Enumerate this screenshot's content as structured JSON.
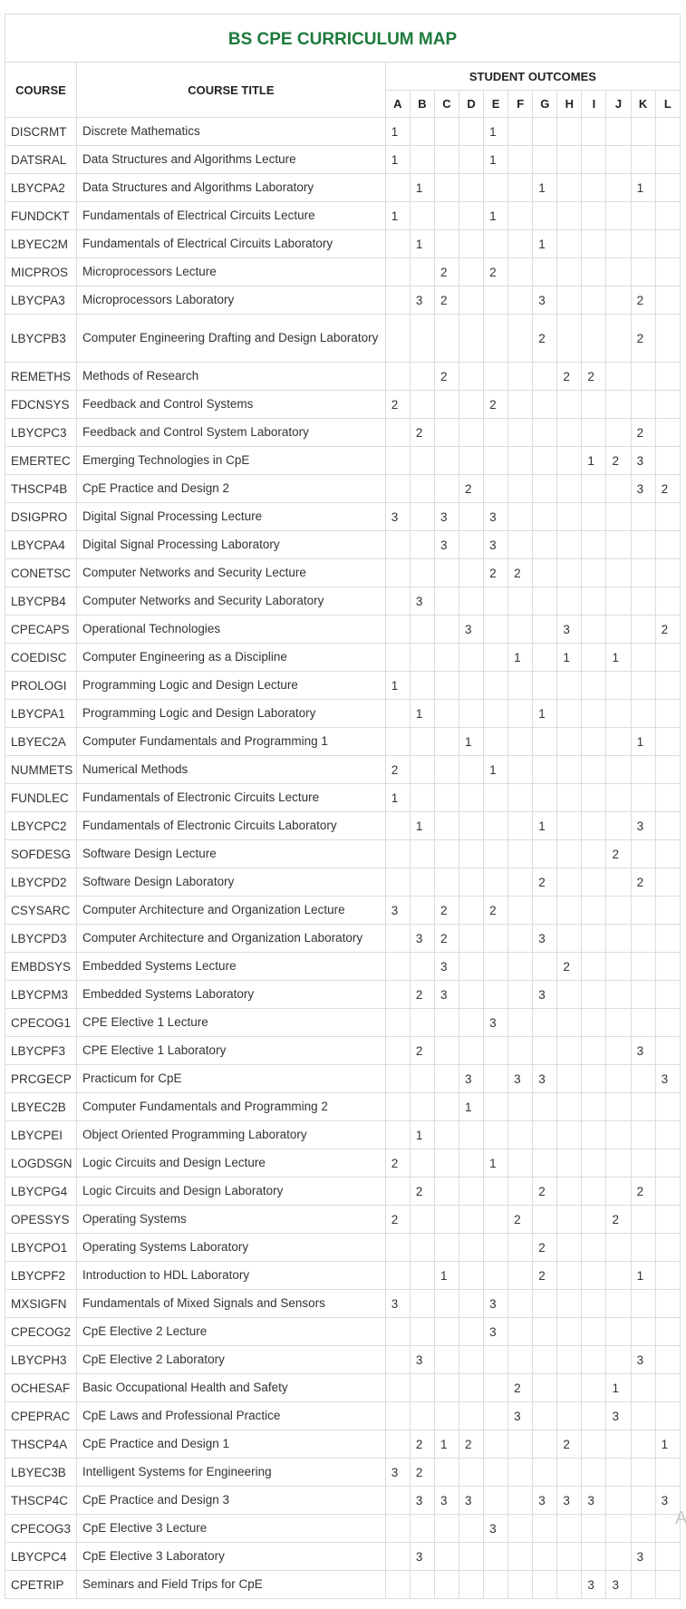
{
  "title": "BS CPE CURRICULUM MAP",
  "headers": {
    "course": "COURSE",
    "course_title": "COURSE TITLE",
    "student_outcomes": "STUDENT OUTCOMES"
  },
  "outcomes": [
    "A",
    "B",
    "C",
    "D",
    "E",
    "F",
    "G",
    "H",
    "I",
    "J",
    "K",
    "L"
  ],
  "rows": [
    {
      "code": "DISCRMT",
      "title": "Discrete Mathematics",
      "so": [
        "1",
        "",
        "",
        "",
        "1",
        "",
        "",
        "",
        "",
        "",
        "",
        ""
      ]
    },
    {
      "code": "DATSRAL",
      "title": "Data Structures and Algorithms Lecture",
      "so": [
        "1",
        "",
        "",
        "",
        "1",
        "",
        "",
        "",
        "",
        "",
        "",
        ""
      ]
    },
    {
      "code": "LBYCPA2",
      "title": "Data Structures and Algorithms Laboratory",
      "so": [
        "",
        "1",
        "",
        "",
        "",
        "",
        "1",
        "",
        "",
        "",
        "1",
        ""
      ]
    },
    {
      "code": "FUNDCKT",
      "title": "Fundamentals of Electrical Circuits Lecture",
      "so": [
        "1",
        "",
        "",
        "",
        "1",
        "",
        "",
        "",
        "",
        "",
        "",
        ""
      ]
    },
    {
      "code": "LBYEC2M",
      "title": "Fundamentals of Electrical Circuits Laboratory",
      "so": [
        "",
        "1",
        "",
        "",
        "",
        "",
        "1",
        "",
        "",
        "",
        "",
        ""
      ]
    },
    {
      "code": "MICPROS",
      "title": "Microprocessors Lecture",
      "so": [
        "",
        "",
        "2",
        "",
        "2",
        "",
        "",
        "",
        "",
        "",
        "",
        ""
      ]
    },
    {
      "code": "LBYCPA3",
      "title": "Microprocessors Laboratory",
      "so": [
        "",
        "3",
        "2",
        "",
        "",
        "",
        "3",
        "",
        "",
        "",
        "2",
        ""
      ]
    },
    {
      "code": "LBYCPB3",
      "title": "Computer Engineering Drafting and Design Laboratory",
      "so": [
        "",
        "",
        "",
        "",
        "",
        "",
        "2",
        "",
        "",
        "",
        "2",
        ""
      ],
      "tall": true
    },
    {
      "code": "REMETHS",
      "title": "Methods of Research",
      "so": [
        "",
        "",
        "2",
        "",
        "",
        "",
        "",
        "2",
        "2",
        "",
        "",
        ""
      ]
    },
    {
      "code": "FDCNSYS",
      "title": "Feedback and Control Systems",
      "so": [
        "2",
        "",
        "",
        "",
        "2",
        "",
        "",
        "",
        "",
        "",
        "",
        ""
      ]
    },
    {
      "code": "LBYCPC3",
      "title": "Feedback and Control System Laboratory",
      "so": [
        "",
        "2",
        "",
        "",
        "",
        "",
        "",
        "",
        "",
        "",
        "2",
        ""
      ]
    },
    {
      "code": "EMERTEC",
      "title": "Emerging Technologies in CpE",
      "so": [
        "",
        "",
        "",
        "",
        "",
        "",
        "",
        "",
        "1",
        "2",
        "3",
        ""
      ]
    },
    {
      "code": "THSCP4B",
      "title": "CpE Practice and Design 2",
      "so": [
        "",
        "",
        "",
        "2",
        "",
        "",
        "",
        "",
        "",
        "",
        "3",
        "2"
      ]
    },
    {
      "code": "DSIGPRO",
      "title": "Digital Signal Processing Lecture",
      "so": [
        "3",
        "",
        "3",
        "",
        "3",
        "",
        "",
        "",
        "",
        "",
        "",
        ""
      ]
    },
    {
      "code": "LBYCPA4",
      "title": "Digital Signal Processing Laboratory",
      "so": [
        "",
        "",
        "3",
        "",
        "3",
        "",
        "",
        "",
        "",
        "",
        "",
        ""
      ]
    },
    {
      "code": "CONETSC",
      "title": "Computer Networks and Security Lecture",
      "so": [
        "",
        "",
        "",
        "",
        "2",
        "2",
        "",
        "",
        "",
        "",
        "",
        ""
      ]
    },
    {
      "code": "LBYCPB4",
      "title": "Computer Networks and Security Laboratory",
      "so": [
        "",
        "3",
        "",
        "",
        "",
        "",
        "",
        "",
        "",
        "",
        "",
        ""
      ]
    },
    {
      "code": "CPECAPS",
      "title": "Operational Technologies",
      "so": [
        "",
        "",
        "",
        "3",
        "",
        "",
        "",
        "3",
        "",
        "",
        "",
        "2"
      ]
    },
    {
      "code": "COEDISC",
      "title": "Computer Engineering as a Discipline",
      "so": [
        "",
        "",
        "",
        "",
        "",
        "1",
        "",
        "1",
        "",
        "1",
        "",
        ""
      ]
    },
    {
      "code": "PROLOGI",
      "title": "Programming Logic and Design Lecture",
      "so": [
        "1",
        "",
        "",
        "",
        "",
        "",
        "",
        "",
        "",
        "",
        "",
        ""
      ]
    },
    {
      "code": "LBYCPA1",
      "title": "Programming Logic and Design Laboratory",
      "so": [
        "",
        "1",
        "",
        "",
        "",
        "",
        "1",
        "",
        "",
        "",
        "",
        ""
      ]
    },
    {
      "code": "LBYEC2A",
      "title": "Computer Fundamentals and Programming 1",
      "so": [
        "",
        "",
        "",
        "1",
        "",
        "",
        "",
        "",
        "",
        "",
        "1",
        ""
      ]
    },
    {
      "code": "NUMMETS",
      "title": "Numerical Methods",
      "so": [
        "2",
        "",
        "",
        "",
        "1",
        "",
        "",
        "",
        "",
        "",
        "",
        ""
      ]
    },
    {
      "code": "FUNDLEC",
      "title": "Fundamentals of Electronic Circuits Lecture",
      "so": [
        "1",
        "",
        "",
        "",
        "",
        "",
        "",
        "",
        "",
        "",
        "",
        ""
      ]
    },
    {
      "code": "LBYCPC2",
      "title": "Fundamentals of Electronic Circuits Laboratory",
      "so": [
        "",
        "1",
        "",
        "",
        "",
        "",
        "1",
        "",
        "",
        "",
        "3",
        ""
      ]
    },
    {
      "code": "SOFDESG",
      "title": "Software Design Lecture",
      "so": [
        "",
        "",
        "",
        "",
        "",
        "",
        "",
        "",
        "",
        "2",
        "",
        ""
      ]
    },
    {
      "code": "LBYCPD2",
      "title": "Software Design Laboratory",
      "so": [
        "",
        "",
        "",
        "",
        "",
        "",
        "2",
        "",
        "",
        "",
        "2",
        ""
      ]
    },
    {
      "code": "CSYSARC",
      "title": "Computer Architecture and Organization Lecture",
      "so": [
        "3",
        "",
        "2",
        "",
        "2",
        "",
        "",
        "",
        "",
        "",
        "",
        ""
      ]
    },
    {
      "code": "LBYCPD3",
      "title": "Computer Architecture and Organization Laboratory",
      "so": [
        "",
        "3",
        "2",
        "",
        "",
        "",
        "3",
        "",
        "",
        "",
        "",
        ""
      ]
    },
    {
      "code": "EMBDSYS",
      "title": "Embedded Systems Lecture",
      "so": [
        "",
        "",
        "3",
        "",
        "",
        "",
        "",
        "2",
        "",
        "",
        "",
        ""
      ]
    },
    {
      "code": "LBYCPM3",
      "title": "Embedded Systems Laboratory",
      "so": [
        "",
        "2",
        "3",
        "",
        "",
        "",
        "3",
        "",
        "",
        "",
        "",
        ""
      ]
    },
    {
      "code": "CPECOG1",
      "title": "CPE Elective 1 Lecture",
      "so": [
        "",
        "",
        "",
        "",
        "3",
        "",
        "",
        "",
        "",
        "",
        "",
        ""
      ]
    },
    {
      "code": "LBYCPF3",
      "title": "CPE Elective 1 Laboratory",
      "so": [
        "",
        "2",
        "",
        "",
        "",
        "",
        "",
        "",
        "",
        "",
        "3",
        ""
      ]
    },
    {
      "code": "PRCGECP",
      "title": "Practicum for CpE",
      "so": [
        "",
        "",
        "",
        "3",
        "",
        "3",
        "3",
        "",
        "",
        "",
        "",
        "3"
      ]
    },
    {
      "code": "LBYEC2B",
      "title": "Computer Fundamentals and Programming 2",
      "so": [
        "",
        "",
        "",
        "1",
        "",
        "",
        "",
        "",
        "",
        "",
        "",
        ""
      ]
    },
    {
      "code": "LBYCPEI",
      "title": "Object Oriented Programming Laboratory",
      "so": [
        "",
        "1",
        "",
        "",
        "",
        "",
        "",
        "",
        "",
        "",
        "",
        ""
      ]
    },
    {
      "code": "LOGDSGN",
      "title": "Logic Circuits and Design Lecture",
      "so": [
        "2",
        "",
        "",
        "",
        "1",
        "",
        "",
        "",
        "",
        "",
        "",
        ""
      ]
    },
    {
      "code": "LBYCPG4",
      "title": "Logic Circuits and Design Laboratory",
      "so": [
        "",
        "2",
        "",
        "",
        "",
        "",
        "2",
        "",
        "",
        "",
        "2",
        ""
      ]
    },
    {
      "code": "OPESSYS",
      "title": "Operating Systems",
      "so": [
        "2",
        "",
        "",
        "",
        "",
        "2",
        "",
        "",
        "",
        "2",
        "",
        ""
      ]
    },
    {
      "code": "LBYCPO1",
      "title": "Operating Systems Laboratory",
      "so": [
        "",
        "",
        "",
        "",
        "",
        "",
        "2",
        "",
        "",
        "",
        "",
        ""
      ]
    },
    {
      "code": "LBYCPF2",
      "title": "Introduction to HDL Laboratory",
      "so": [
        "",
        "",
        "1",
        "",
        "",
        "",
        "2",
        "",
        "",
        "",
        "1",
        ""
      ]
    },
    {
      "code": "MXSIGFN",
      "title": "Fundamentals of Mixed Signals and Sensors",
      "so": [
        "3",
        "",
        "",
        "",
        "3",
        "",
        "",
        "",
        "",
        "",
        "",
        ""
      ]
    },
    {
      "code": "CPECOG2",
      "title": "CpE Elective 2 Lecture",
      "so": [
        "",
        "",
        "",
        "",
        "3",
        "",
        "",
        "",
        "",
        "",
        "",
        ""
      ]
    },
    {
      "code": "LBYCPH3",
      "title": "CpE Elective 2 Laboratory",
      "so": [
        "",
        "3",
        "",
        "",
        "",
        "",
        "",
        "",
        "",
        "",
        "3",
        ""
      ]
    },
    {
      "code": "OCHESAF",
      "title": "Basic Occupational Health and Safety",
      "so": [
        "",
        "",
        "",
        "",
        "",
        "2",
        "",
        "",
        "",
        "1",
        "",
        ""
      ]
    },
    {
      "code": "CPEPRAC",
      "title": "CpE Laws and Professional Practice",
      "so": [
        "",
        "",
        "",
        "",
        "",
        "3",
        "",
        "",
        "",
        "3",
        "",
        ""
      ]
    },
    {
      "code": "THSCP4A",
      "title": "CpE Practice and Design 1",
      "so": [
        "",
        "2",
        "1",
        "2",
        "",
        "",
        "",
        "2",
        "",
        "",
        "",
        "1"
      ]
    },
    {
      "code": "LBYEC3B",
      "title": "Intelligent Systems for Engineering",
      "so": [
        "3",
        "2",
        "",
        "",
        "",
        "",
        "",
        "",
        "",
        "",
        "",
        ""
      ]
    },
    {
      "code": "THSCP4C",
      "title": "CpE Practice and Design 3",
      "so": [
        "",
        "3",
        "3",
        "3",
        "",
        "",
        "3",
        "3",
        "3",
        "",
        "",
        "3"
      ]
    },
    {
      "code": "CPECOG3",
      "title": "CpE Elective 3 Lecture",
      "so": [
        "",
        "",
        "",
        "",
        "3",
        "",
        "",
        "",
        "",
        "",
        "",
        ""
      ]
    },
    {
      "code": "LBYCPC4",
      "title": "CpE Elective 3 Laboratory",
      "so": [
        "",
        "3",
        "",
        "",
        "",
        "",
        "",
        "",
        "",
        "",
        "3",
        ""
      ]
    },
    {
      "code": "CPETRIP",
      "title": "Seminars and Field Trips for CpE",
      "so": [
        "",
        "",
        "",
        "",
        "",
        "",
        "",
        "",
        "3",
        "3",
        "",
        ""
      ]
    }
  ],
  "watermark_glyph": "A"
}
